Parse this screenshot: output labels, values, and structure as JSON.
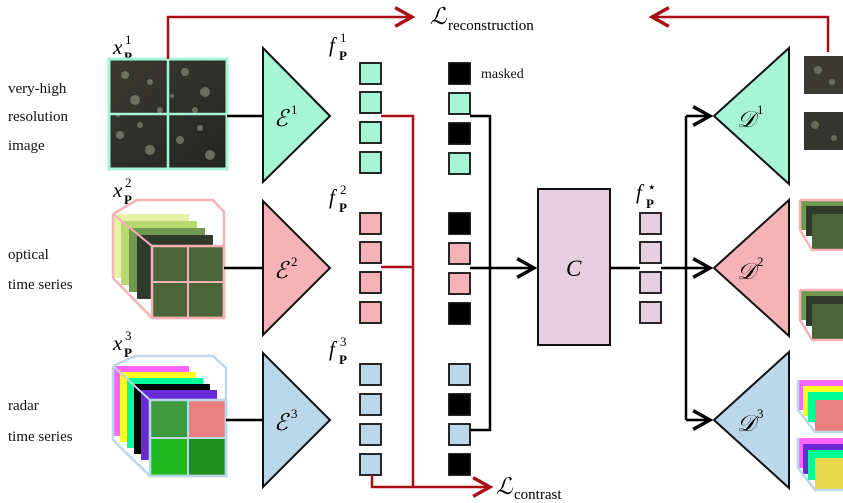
{
  "colors": {
    "vhr": "#a6f5d7",
    "optical": "#f5b3b8",
    "radar": "#bcd6ea",
    "core": "#e5cfe0",
    "arrow_red": "#a80e13",
    "masked": "#000000"
  },
  "modalities": [
    {
      "lines": [
        "very-high",
        "resolution",
        "image"
      ],
      "input_label": "x",
      "input_sup": "1",
      "input_sub": "P",
      "encoder": "E",
      "encoder_sup": "1",
      "feature": "f",
      "feature_sup": "1",
      "feature_sub": "P",
      "decoder": "D",
      "decoder_sup": "1"
    },
    {
      "lines": [
        "optical",
        "time series"
      ],
      "input_label": "x",
      "input_sup": "2",
      "input_sub": "P",
      "encoder": "E",
      "encoder_sup": "2",
      "feature": "f",
      "feature_sup": "2",
      "feature_sub": "P",
      "decoder": "D",
      "decoder_sup": "2"
    },
    {
      "lines": [
        "radar",
        "time series"
      ],
      "input_label": "x",
      "input_sup": "3",
      "input_sub": "P",
      "encoder": "E",
      "encoder_sup": "3",
      "feature": "f",
      "feature_sup": "3",
      "feature_sub": "P",
      "decoder": "D",
      "decoder_sup": "3"
    }
  ],
  "masked_label": "masked",
  "masking": [
    [
      true,
      false,
      true,
      false
    ],
    [
      true,
      false,
      false,
      true
    ],
    [
      false,
      true,
      false,
      true
    ]
  ],
  "core": {
    "symbol": "C"
  },
  "fused": {
    "label": "f",
    "sup": "⋆",
    "sub": "P"
  },
  "losses": {
    "reconstruction": {
      "symbol": "ℒ",
      "subscript": "reconstruction"
    },
    "contrast": {
      "symbol": "ℒ",
      "subscript": "contrast"
    }
  }
}
